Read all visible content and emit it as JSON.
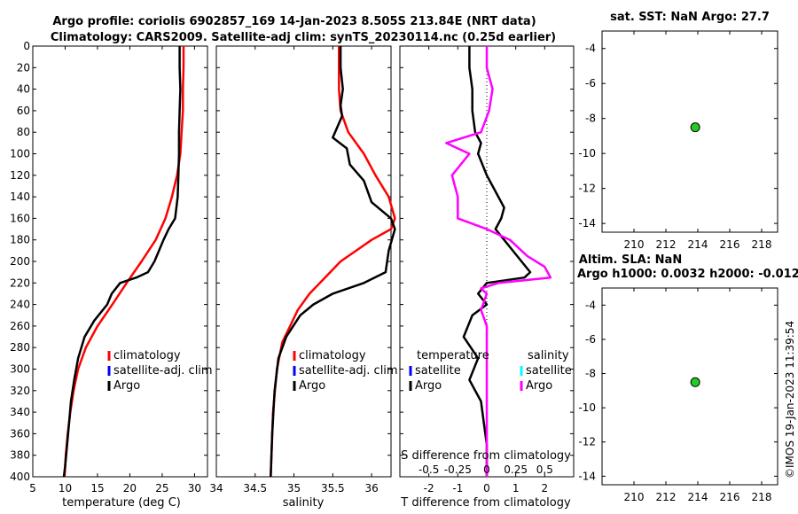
{
  "figure": {
    "title_line1": "Argo profile: coriolis 6902857_169 14-Jan-2023 8.505S 213.84E (NRT data)",
    "title_line2": "Climatology: CARS2009. Satellite-adj clim: synTS_20230114.nc (0.25d earlier)",
    "sst_title": "sat. SST: NaN Argo: 27.7",
    "sla_title1": "Altim. SLA: NaN",
    "sla_title2": "Argo h1000: 0.0032 h2000: -0.012",
    "credit": "©IMOS 19-Jan-2023 11:39:54"
  },
  "colors": {
    "climatology": "#ff0000",
    "satellite_adj": "#0000ff",
    "argo": "#000000",
    "salinity_argo": "#ff00ff",
    "salinity_sat": "#00ffff",
    "marker": "#22cc22"
  },
  "legend_temp": [
    "climatology",
    "satellite-adj. clim",
    "Argo"
  ],
  "legend_sal": [
    "climatology",
    "satellite-adj. clim",
    "Argo"
  ],
  "legend_diff": {
    "temp_header": "temperature",
    "sal_header": "salinity",
    "temp_items": [
      "satellite",
      "Argo"
    ],
    "sal_items": [
      "satellite",
      "Argo"
    ]
  },
  "chart_data": [
    {
      "type": "line",
      "name": "temperature",
      "xlabel": "temperature (deg C)",
      "xlim": [
        5,
        32
      ],
      "ylim": [
        0,
        400
      ],
      "xticks": [
        5,
        10,
        15,
        20,
        25,
        30
      ],
      "yticks": [
        0,
        20,
        40,
        60,
        80,
        100,
        120,
        140,
        160,
        180,
        200,
        220,
        240,
        260,
        280,
        300,
        320,
        340,
        360,
        380,
        400
      ],
      "series": [
        {
          "name": "climatology",
          "color": "#ff0000",
          "points": [
            [
              28.3,
              0
            ],
            [
              28.3,
              20
            ],
            [
              28.2,
              40
            ],
            [
              28.2,
              60
            ],
            [
              28.0,
              80
            ],
            [
              27.8,
              100
            ],
            [
              27.3,
              120
            ],
            [
              26.5,
              140
            ],
            [
              25.5,
              160
            ],
            [
              24.0,
              180
            ],
            [
              21.8,
              200
            ],
            [
              19.5,
              220
            ],
            [
              17.3,
              240
            ],
            [
              15.0,
              260
            ],
            [
              13.2,
              280
            ],
            [
              12.0,
              300
            ],
            [
              11.3,
              320
            ],
            [
              10.8,
              340
            ],
            [
              10.4,
              360
            ],
            [
              10.1,
              380
            ],
            [
              9.9,
              400
            ]
          ]
        },
        {
          "name": "Argo",
          "color": "#000000",
          "points": [
            [
              27.7,
              0
            ],
            [
              27.7,
              20
            ],
            [
              27.8,
              40
            ],
            [
              27.7,
              60
            ],
            [
              27.6,
              80
            ],
            [
              27.6,
              100
            ],
            [
              27.5,
              120
            ],
            [
              27.4,
              140
            ],
            [
              27.0,
              160
            ],
            [
              26.0,
              170
            ],
            [
              25.2,
              180
            ],
            [
              24.5,
              190
            ],
            [
              23.8,
              200
            ],
            [
              22.8,
              210
            ],
            [
              21.0,
              215
            ],
            [
              18.5,
              220
            ],
            [
              17.2,
              230
            ],
            [
              16.5,
              240
            ],
            [
              14.5,
              255
            ],
            [
              13.0,
              270
            ],
            [
              12.0,
              290
            ],
            [
              11.4,
              310
            ],
            [
              10.9,
              330
            ],
            [
              10.6,
              350
            ],
            [
              10.3,
              370
            ],
            [
              10.0,
              390
            ],
            [
              9.8,
              400
            ]
          ]
        }
      ],
      "legend": "lower-right"
    },
    {
      "type": "line",
      "name": "salinity",
      "xlabel": "salinity",
      "xlim": [
        34,
        36.25
      ],
      "ylim": [
        0,
        400
      ],
      "xticks": [
        34,
        34.5,
        35,
        35.5,
        36
      ],
      "xtick_labels": [
        "34",
        "34.5",
        "35",
        "35.5",
        "36"
      ],
      "series": [
        {
          "name": "climatology",
          "color": "#ff0000",
          "points": [
            [
              35.58,
              0
            ],
            [
              35.58,
              40
            ],
            [
              35.6,
              60
            ],
            [
              35.7,
              80
            ],
            [
              35.9,
              100
            ],
            [
              36.05,
              120
            ],
            [
              36.22,
              140
            ],
            [
              36.3,
              160
            ],
            [
              36.25,
              170
            ],
            [
              36.0,
              180
            ],
            [
              35.8,
              190
            ],
            [
              35.6,
              200
            ],
            [
              35.4,
              215
            ],
            [
              35.2,
              230
            ],
            [
              35.05,
              245
            ],
            [
              34.95,
              260
            ],
            [
              34.85,
              275
            ],
            [
              34.78,
              300
            ],
            [
              34.73,
              340
            ],
            [
              34.7,
              400
            ]
          ]
        },
        {
          "name": "Argo",
          "color": "#000000",
          "points": [
            [
              35.6,
              0
            ],
            [
              35.6,
              20
            ],
            [
              35.63,
              40
            ],
            [
              35.6,
              55
            ],
            [
              35.62,
              65
            ],
            [
              35.5,
              85
            ],
            [
              35.68,
              95
            ],
            [
              35.72,
              110
            ],
            [
              35.9,
              125
            ],
            [
              36.0,
              145
            ],
            [
              36.25,
              160
            ],
            [
              36.3,
              170
            ],
            [
              36.22,
              190
            ],
            [
              36.18,
              210
            ],
            [
              35.9,
              220
            ],
            [
              35.5,
              230
            ],
            [
              35.25,
              240
            ],
            [
              35.08,
              250
            ],
            [
              34.9,
              270
            ],
            [
              34.8,
              290
            ],
            [
              34.75,
              320
            ],
            [
              34.72,
              360
            ],
            [
              34.7,
              400
            ]
          ]
        }
      ],
      "legend": "lower-right"
    },
    {
      "type": "line",
      "name": "difference",
      "xlabel": "T difference from climatology",
      "top_xlabel": "S difference from climatology",
      "xlim": [
        -3,
        3
      ],
      "ylim": [
        0,
        400
      ],
      "xticks": [
        -2,
        -1,
        0,
        1,
        2
      ],
      "top_ticks": [
        -0.5,
        -0.25,
        0,
        0.25,
        0.5
      ],
      "top_tick_labels": [
        "-0.5",
        "-0.25",
        "0",
        "0.25",
        "0.5"
      ],
      "series": [
        {
          "name": "temperature Argo",
          "color": "#000000",
          "points": [
            [
              -0.6,
              0
            ],
            [
              -0.6,
              20
            ],
            [
              -0.5,
              40
            ],
            [
              -0.5,
              60
            ],
            [
              -0.4,
              80
            ],
            [
              -0.2,
              90
            ],
            [
              -0.3,
              100
            ],
            [
              0.0,
              120
            ],
            [
              0.4,
              140
            ],
            [
              0.6,
              150
            ],
            [
              0.5,
              160
            ],
            [
              0.3,
              170
            ],
            [
              0.6,
              180
            ],
            [
              0.9,
              190
            ],
            [
              1.2,
              200
            ],
            [
              1.5,
              210
            ],
            [
              1.3,
              215
            ],
            [
              0.0,
              220
            ],
            [
              -0.3,
              230
            ],
            [
              0.0,
              240
            ],
            [
              -0.5,
              250
            ],
            [
              -0.8,
              270
            ],
            [
              -0.3,
              290
            ],
            [
              -0.6,
              310
            ],
            [
              -0.2,
              330
            ],
            [
              -0.1,
              350
            ],
            [
              0.0,
              370
            ],
            [
              0.0,
              400
            ]
          ]
        },
        {
          "name": "salinity Argo",
          "color": "#ff00ff",
          "points": [
            [
              0.0,
              0
            ],
            [
              0.0,
              20
            ],
            [
              0.05,
              40
            ],
            [
              0.02,
              60
            ],
            [
              -0.05,
              80
            ],
            [
              -0.35,
              90
            ],
            [
              -0.15,
              100
            ],
            [
              -0.3,
              120
            ],
            [
              -0.25,
              140
            ],
            [
              -0.25,
              160
            ],
            [
              0.0,
              170
            ],
            [
              0.2,
              180
            ],
            [
              0.35,
              195
            ],
            [
              0.5,
              205
            ],
            [
              0.55,
              215
            ],
            [
              0.1,
              220
            ],
            [
              -0.05,
              225
            ],
            [
              0.0,
              230
            ],
            [
              -0.05,
              245
            ],
            [
              0.0,
              260
            ],
            [
              0.0,
              300
            ],
            [
              0.0,
              400
            ]
          ]
        }
      ],
      "legend": "lower-right"
    },
    {
      "type": "scatter",
      "name": "sst_location",
      "xlim": [
        208,
        219
      ],
      "ylim": [
        -14.5,
        -3
      ],
      "xticks": [
        210,
        212,
        214,
        216,
        218
      ],
      "yticks": [
        -4,
        -6,
        -8,
        -10,
        -12,
        -14
      ],
      "points": [
        [
          213.84,
          -8.505
        ]
      ]
    },
    {
      "type": "scatter",
      "name": "sla_location",
      "xlim": [
        208,
        219
      ],
      "ylim": [
        -14.5,
        -3
      ],
      "xticks": [
        210,
        212,
        214,
        216,
        218
      ],
      "yticks": [
        -4,
        -6,
        -8,
        -10,
        -12,
        -14
      ],
      "points": [
        [
          213.84,
          -8.505
        ]
      ]
    }
  ]
}
